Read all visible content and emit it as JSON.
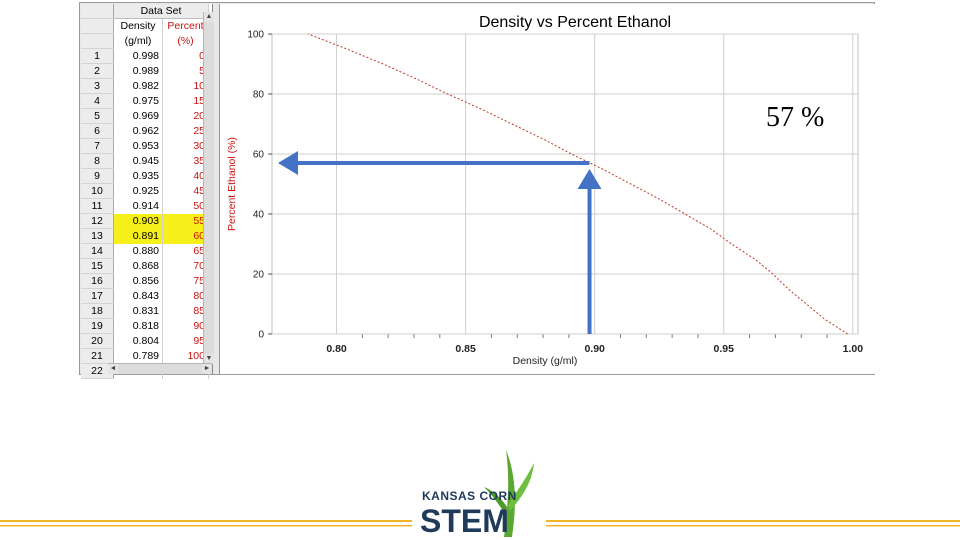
{
  "table": {
    "title": "Data Set",
    "col_density_header": [
      "Density",
      "(g/ml)"
    ],
    "col_percent_header": [
      "Percent",
      "(%)"
    ],
    "rows": [
      {
        "n": "1",
        "density": "0.998",
        "percent": "0"
      },
      {
        "n": "2",
        "density": "0.989",
        "percent": "5"
      },
      {
        "n": "3",
        "density": "0.982",
        "percent": "10"
      },
      {
        "n": "4",
        "density": "0.975",
        "percent": "15"
      },
      {
        "n": "5",
        "density": "0.969",
        "percent": "20"
      },
      {
        "n": "6",
        "density": "0.962",
        "percent": "25"
      },
      {
        "n": "7",
        "density": "0.953",
        "percent": "30"
      },
      {
        "n": "8",
        "density": "0.945",
        "percent": "35"
      },
      {
        "n": "9",
        "density": "0.935",
        "percent": "40"
      },
      {
        "n": "10",
        "density": "0.925",
        "percent": "45"
      },
      {
        "n": "11",
        "density": "0.914",
        "percent": "50"
      },
      {
        "n": "12",
        "density": "0.903",
        "percent": "55",
        "highlight": true
      },
      {
        "n": "13",
        "density": "0.891",
        "percent": "60",
        "highlight": true
      },
      {
        "n": "14",
        "density": "0.880",
        "percent": "65"
      },
      {
        "n": "15",
        "density": "0.868",
        "percent": "70"
      },
      {
        "n": "16",
        "density": "0.856",
        "percent": "75"
      },
      {
        "n": "17",
        "density": "0.843",
        "percent": "80"
      },
      {
        "n": "18",
        "density": "0.831",
        "percent": "85"
      },
      {
        "n": "19",
        "density": "0.818",
        "percent": "90"
      },
      {
        "n": "20",
        "density": "0.804",
        "percent": "95"
      },
      {
        "n": "21",
        "density": "0.789",
        "percent": "100"
      },
      {
        "n": "22",
        "density": "",
        "percent": ""
      }
    ]
  },
  "chart_data": {
    "type": "line",
    "title": "Density vs Percent Ethanol",
    "xlabel": "Density (g/ml)",
    "ylabel": "Percent Ethanol (%)",
    "xlim": [
      0.775,
      1.002
    ],
    "ylim": [
      0,
      100
    ],
    "x_ticks": [
      "0.80",
      "0.85",
      "0.90",
      "0.95",
      "1.00"
    ],
    "y_ticks": [
      "0",
      "20",
      "40",
      "60",
      "80",
      "100"
    ],
    "grid": true,
    "series": [
      {
        "color": "#c0392b",
        "x": [
          0.998,
          0.989,
          0.982,
          0.975,
          0.969,
          0.962,
          0.953,
          0.945,
          0.935,
          0.925,
          0.914,
          0.903,
          0.891,
          0.88,
          0.868,
          0.856,
          0.843,
          0.831,
          0.818,
          0.804,
          0.789
        ],
        "y": [
          0,
          5,
          10,
          15,
          20,
          25,
          30,
          35,
          40,
          45,
          50,
          55,
          60,
          65,
          70,
          75,
          80,
          85,
          90,
          95,
          100
        ]
      }
    ],
    "annotation": {
      "text": "57 %",
      "x": 0.898,
      "y": 57,
      "arrow_color": "#4472c4"
    }
  },
  "logo": {
    "brand": "KANSAS CORN",
    "word": "STEM",
    "colors": {
      "green": "#5aa832",
      "navy": "#1f3a5a",
      "gold": "#f0b428"
    }
  }
}
